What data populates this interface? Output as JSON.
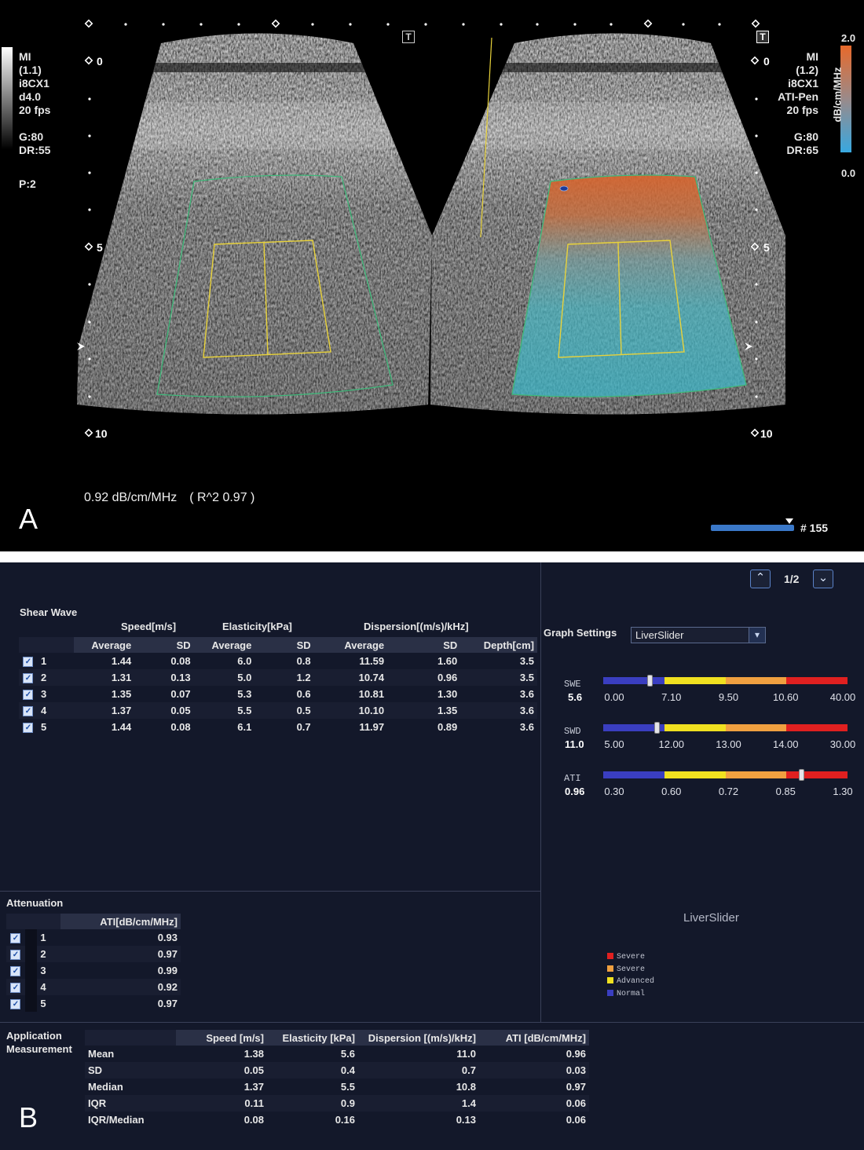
{
  "panel_a": {
    "letter": "A",
    "left_info": [
      "MI",
      "(1.1)",
      "i8CX1",
      "d4.0",
      "20 fps",
      "",
      "G:80",
      "DR:55",
      "",
      "P:2"
    ],
    "right_info": [
      "MI",
      "(1.2)",
      "i8CX1",
      "ATI-Pen",
      "20 fps",
      "",
      "G:80",
      "DR:65"
    ],
    "depth_left": [
      "0",
      "5",
      "10"
    ],
    "depth_right": [
      "0",
      "5",
      "10"
    ],
    "scale_max": "2.0",
    "scale_min": "0.0",
    "scale_unit": "dB/cm/MHz",
    "t_label": "T",
    "measurement": "0.92 dB/cm/MHz",
    "r2": "( R^2 0.97 )",
    "frame": "# 155",
    "colors": {
      "background": "#000000",
      "roi_green": "#3fb87a",
      "roi_yellow": "#e8d23a",
      "ati_high": "#e0702a",
      "ati_low": "#3cb6c8"
    }
  },
  "panel_b": {
    "letter": "B",
    "pager": "1/2",
    "shear_wave": {
      "title": "Shear Wave",
      "group_headers": [
        "Speed[m/s]",
        "Elasticity[kPa]",
        "Dispersion[(m/s)/kHz]"
      ],
      "columns": [
        "Average",
        "SD",
        "Average",
        "SD",
        "Average",
        "SD",
        "Depth[cm]"
      ],
      "rows": [
        {
          "n": "1",
          "v": [
            "1.44",
            "0.08",
            "6.0",
            "0.8",
            "11.59",
            "1.60",
            "3.5"
          ]
        },
        {
          "n": "2",
          "v": [
            "1.31",
            "0.13",
            "5.0",
            "1.2",
            "10.74",
            "0.96",
            "3.5"
          ]
        },
        {
          "n": "3",
          "v": [
            "1.35",
            "0.07",
            "5.3",
            "0.6",
            "10.81",
            "1.30",
            "3.6"
          ]
        },
        {
          "n": "4",
          "v": [
            "1.37",
            "0.05",
            "5.5",
            "0.5",
            "10.10",
            "1.35",
            "3.6"
          ]
        },
        {
          "n": "5",
          "v": [
            "1.44",
            "0.08",
            "6.1",
            "0.7",
            "11.97",
            "0.89",
            "3.6"
          ]
        }
      ]
    },
    "attenuation": {
      "title": "Attenuation",
      "column": "ATI[dB/cm/MHz]",
      "rows": [
        {
          "n": "1",
          "v": "0.93"
        },
        {
          "n": "2",
          "v": "0.97"
        },
        {
          "n": "3",
          "v": "0.99"
        },
        {
          "n": "4",
          "v": "0.92"
        },
        {
          "n": "5",
          "v": "0.97"
        }
      ]
    },
    "application": {
      "title_line1": "Application",
      "title_line2": "Measurement",
      "columns": [
        "Speed [m/s]",
        "Elasticity [kPa]",
        "Dispersion [(m/s)/kHz]",
        "ATI [dB/cm/MHz]"
      ],
      "rows": [
        {
          "label": "Mean",
          "v": [
            "1.38",
            "5.6",
            "11.0",
            "0.96"
          ]
        },
        {
          "label": "SD",
          "v": [
            "0.05",
            "0.4",
            "0.7",
            "0.03"
          ]
        },
        {
          "label": "Median",
          "v": [
            "1.37",
            "5.5",
            "10.8",
            "0.97"
          ]
        },
        {
          "label": "IQR",
          "v": [
            "0.11",
            "0.9",
            "1.4",
            "0.06"
          ]
        },
        {
          "label": "IQR/Median",
          "v": [
            "0.08",
            "0.16",
            "0.13",
            "0.06"
          ]
        }
      ]
    },
    "graph_settings": {
      "label": "Graph Settings",
      "selected": "LiverSlider"
    },
    "sliders": [
      {
        "name": "SWE",
        "value": "5.6",
        "ticks": [
          "0.00",
          "7.10",
          "9.50",
          "10.60",
          "40.00"
        ],
        "level": 0.19
      },
      {
        "name": "SWD",
        "value": "11.0",
        "ticks": [
          "5.00",
          "12.00",
          "13.00",
          "14.00",
          "30.00"
        ],
        "level": 0.22
      },
      {
        "name": "ATI",
        "value": "0.96",
        "ticks": [
          "0.30",
          "0.60",
          "0.72",
          "0.85",
          "1.30"
        ],
        "level": 0.81
      }
    ],
    "liverslider_title": "LiverSlider",
    "legend": [
      {
        "label": "Severe",
        "color": "#e02020"
      },
      {
        "label": "Severe",
        "color": "#f0a040"
      },
      {
        "label": "Advanced",
        "color": "#f0e020"
      },
      {
        "label": "Normal",
        "color": "#3a3ec0"
      }
    ],
    "segment_colors": [
      "#3a3ec0",
      "#f0e020",
      "#f0a040",
      "#e02020"
    ]
  }
}
